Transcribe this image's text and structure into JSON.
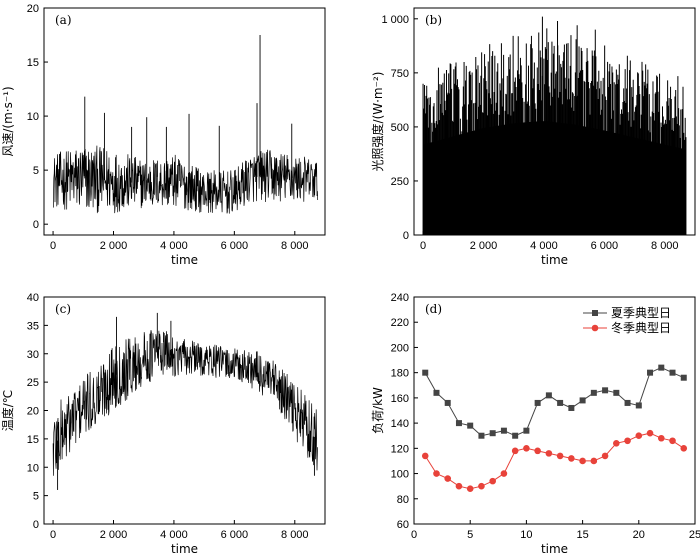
{
  "chart_data": [
    {
      "id": "a",
      "type": "line",
      "panel_label": "(a)",
      "xlabel": "time",
      "ylabel": "风速/(m·s⁻¹)",
      "xlim": [
        -300,
        9000
      ],
      "ylim": [
        -1,
        20
      ],
      "xticks": [
        {
          "value": 0,
          "label": "0"
        },
        {
          "value": 2000,
          "label": "2 000"
        },
        {
          "value": 4000,
          "label": "4 000"
        },
        {
          "value": 6000,
          "label": "6 000"
        },
        {
          "value": 8000,
          "label": "8 000"
        }
      ],
      "yticks": [
        {
          "value": 0,
          "label": "0"
        },
        {
          "value": 5,
          "label": "5"
        },
        {
          "value": 10,
          "label": "10"
        },
        {
          "value": 15,
          "label": "15"
        },
        {
          "value": 20,
          "label": "20"
        }
      ],
      "series_color": "#000000",
      "x_range": [
        0,
        8760
      ],
      "envelope": [
        {
          "x": 0,
          "low": 1.5,
          "high": 6.5
        },
        {
          "x": 1000,
          "low": 1.0,
          "high": 7.5
        },
        {
          "x": 2000,
          "low": 1.0,
          "high": 7.0
        },
        {
          "x": 3000,
          "low": 1.5,
          "high": 6.0
        },
        {
          "x": 4000,
          "low": 1.5,
          "high": 6.5
        },
        {
          "x": 5000,
          "low": 1.0,
          "high": 5.0
        },
        {
          "x": 6000,
          "low": 0.8,
          "high": 5.0
        },
        {
          "x": 6500,
          "low": 2.0,
          "high": 6.5
        },
        {
          "x": 7000,
          "low": 2.0,
          "high": 7.0
        },
        {
          "x": 8000,
          "low": 2.0,
          "high": 6.5
        },
        {
          "x": 8760,
          "low": 2.0,
          "high": 6.0
        }
      ],
      "peaks": [
        {
          "x": 1050,
          "y": 11.8
        },
        {
          "x": 1700,
          "y": 10.3
        },
        {
          "x": 2600,
          "y": 9.0
        },
        {
          "x": 3100,
          "y": 9.9
        },
        {
          "x": 3750,
          "y": 9.0
        },
        {
          "x": 4500,
          "y": 10.2
        },
        {
          "x": 5500,
          "y": 9.1
        },
        {
          "x": 6750,
          "y": 11.2
        },
        {
          "x": 6850,
          "y": 17.5
        },
        {
          "x": 7900,
          "y": 9.3
        }
      ]
    },
    {
      "id": "b",
      "type": "bar",
      "panel_label": "(b)",
      "xlabel": "time",
      "ylabel": "光照强度/(W·m⁻²)",
      "xlim": [
        -300,
        9000
      ],
      "ylim": [
        0,
        1050
      ],
      "xticks": [
        {
          "value": 0,
          "label": "0"
        },
        {
          "value": 2000,
          "label": "2 000"
        },
        {
          "value": 4000,
          "label": "4 000"
        },
        {
          "value": 6000,
          "label": "6 000"
        },
        {
          "value": 8000,
          "label": "8 000"
        }
      ],
      "yticks": [
        {
          "value": 0,
          "label": "0"
        },
        {
          "value": 250,
          "label": "250"
        },
        {
          "value": 500,
          "label": "500"
        },
        {
          "value": 750,
          "label": "750"
        },
        {
          "value": 1000,
          "label": "1 000"
        }
      ],
      "series_color": "#000000",
      "x_range": [
        0,
        8760
      ],
      "envelope": [
        {
          "x": 0,
          "high": 760
        },
        {
          "x": 1000,
          "high": 830
        },
        {
          "x": 2000,
          "high": 900
        },
        {
          "x": 3000,
          "high": 940
        },
        {
          "x": 4000,
          "high": 960
        },
        {
          "x": 5000,
          "high": 930
        },
        {
          "x": 6000,
          "high": 880
        },
        {
          "x": 7000,
          "high": 820
        },
        {
          "x": 8000,
          "high": 760
        },
        {
          "x": 8700,
          "high": 720
        }
      ],
      "peaks": [
        {
          "x": 3950,
          "y": 1010
        },
        {
          "x": 4450,
          "y": 990
        },
        {
          "x": 5100,
          "y": 970
        },
        {
          "x": 5700,
          "y": 950
        }
      ]
    },
    {
      "id": "c",
      "type": "line",
      "panel_label": "(c)",
      "xlabel": "time",
      "ylabel": "温度/℃",
      "xlim": [
        -300,
        9000
      ],
      "ylim": [
        0,
        40
      ],
      "xticks": [
        {
          "value": 0,
          "label": "0"
        },
        {
          "value": 2000,
          "label": "2 000"
        },
        {
          "value": 4000,
          "label": "4 000"
        },
        {
          "value": 6000,
          "label": "6 000"
        },
        {
          "value": 8000,
          "label": "8 000"
        }
      ],
      "yticks": [
        {
          "value": 0,
          "label": "0"
        },
        {
          "value": 5,
          "label": "5"
        },
        {
          "value": 10,
          "label": "10"
        },
        {
          "value": 15,
          "label": "15"
        },
        {
          "value": 20,
          "label": "20"
        },
        {
          "value": 25,
          "label": "25"
        },
        {
          "value": 30,
          "label": "30"
        },
        {
          "value": 35,
          "label": "35"
        },
        {
          "value": 40,
          "label": "40"
        }
      ],
      "series_color": "#000000",
      "x_range": [
        0,
        8760
      ],
      "envelope": [
        {
          "x": 0,
          "low": 6,
          "high": 21
        },
        {
          "x": 500,
          "low": 12,
          "high": 23
        },
        {
          "x": 1000,
          "low": 15,
          "high": 26
        },
        {
          "x": 1500,
          "low": 17,
          "high": 28
        },
        {
          "x": 2000,
          "low": 20,
          "high": 32
        },
        {
          "x": 2500,
          "low": 22,
          "high": 33
        },
        {
          "x": 3000,
          "low": 24,
          "high": 34
        },
        {
          "x": 3500,
          "low": 26,
          "high": 35
        },
        {
          "x": 4000,
          "low": 26,
          "high": 33
        },
        {
          "x": 5000,
          "low": 26,
          "high": 32
        },
        {
          "x": 6000,
          "low": 25,
          "high": 31
        },
        {
          "x": 6500,
          "low": 24,
          "high": 31
        },
        {
          "x": 7000,
          "low": 22,
          "high": 30
        },
        {
          "x": 7500,
          "low": 19,
          "high": 28
        },
        {
          "x": 8000,
          "low": 15,
          "high": 25
        },
        {
          "x": 8500,
          "low": 11,
          "high": 22
        },
        {
          "x": 8760,
          "low": 9,
          "high": 20
        }
      ],
      "peaks": [
        {
          "x": 2100,
          "y": 36.5
        },
        {
          "x": 3450,
          "y": 37.2
        },
        {
          "x": 3900,
          "y": 35.8
        },
        {
          "x": 150,
          "y": 6.0
        },
        {
          "x": 8650,
          "y": 8.5
        }
      ]
    },
    {
      "id": "d",
      "type": "line",
      "panel_label": "(d)",
      "xlabel": "time",
      "ylabel": "负荷/kW",
      "xlim": [
        0,
        25
      ],
      "ylim": [
        60,
        240
      ],
      "xticks": [
        {
          "value": 0,
          "label": "0"
        },
        {
          "value": 5,
          "label": "5"
        },
        {
          "value": 10,
          "label": "10"
        },
        {
          "value": 15,
          "label": "15"
        },
        {
          "value": 20,
          "label": "20"
        },
        {
          "value": 25,
          "label": "25"
        }
      ],
      "yticks": [
        {
          "value": 60,
          "label": "60"
        },
        {
          "value": 80,
          "label": "80"
        },
        {
          "value": 100,
          "label": "100"
        },
        {
          "value": 120,
          "label": "120"
        },
        {
          "value": 140,
          "label": "140"
        },
        {
          "value": 160,
          "label": "160"
        },
        {
          "value": 180,
          "label": "180"
        },
        {
          "value": 200,
          "label": "200"
        },
        {
          "value": 220,
          "label": "220"
        },
        {
          "value": 240,
          "label": "240"
        }
      ],
      "legend_position": "top-right",
      "x": [
        1,
        2,
        3,
        4,
        5,
        6,
        7,
        8,
        9,
        10,
        11,
        12,
        13,
        14,
        15,
        16,
        17,
        18,
        19,
        20,
        21,
        22,
        23,
        24
      ],
      "series": [
        {
          "name": "夏季典型日",
          "color": "#444444",
          "marker": "square",
          "values": [
            180,
            164,
            156,
            140,
            138,
            130,
            132,
            134,
            130,
            134,
            156,
            162,
            156,
            152,
            158,
            164,
            166,
            164,
            156,
            154,
            180,
            184,
            180,
            176
          ]
        },
        {
          "name": "冬季典型日",
          "color": "#e8423a",
          "marker": "circle",
          "values": [
            114,
            100,
            96,
            90,
            88,
            90,
            94,
            100,
            118,
            120,
            118,
            116,
            114,
            112,
            110,
            110,
            114,
            124,
            126,
            130,
            132,
            128,
            126,
            120
          ]
        }
      ]
    }
  ]
}
